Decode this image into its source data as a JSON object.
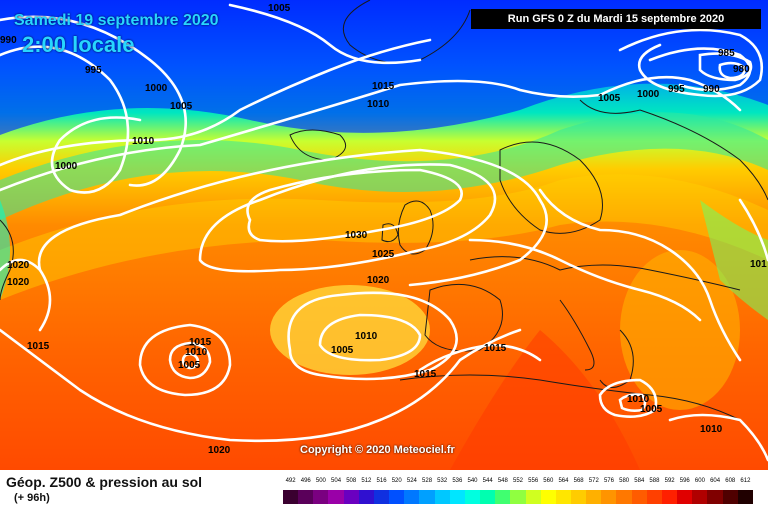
{
  "header": {
    "date": "Samedi 19 septembre 2020",
    "time": "2:00 locale",
    "run": "Run GFS 0 Z du Mardi 15 septembre 2020"
  },
  "copyright": "Copyright © 2020 Meteociel.fr",
  "footer": {
    "title": "Géop. Z500 & pression au sol",
    "subtitle": "(+ 96h)"
  },
  "isobar_labels": [
    "990",
    "1005",
    "995",
    "1000",
    "1005",
    "1010",
    "1000",
    "1020",
    "1020",
    "1015",
    "1015",
    "1010",
    "1005",
    "1030",
    "1025",
    "1020",
    "1010",
    "1005",
    "1015",
    "1015",
    "1010",
    "1015",
    "1005",
    "1000",
    "995",
    "990",
    "985",
    "980",
    "1010",
    "1005",
    "1010",
    "1010",
    "1020",
    "101"
  ],
  "legend": {
    "labels": [
      "492",
      "496",
      "500",
      "504",
      "508",
      "512",
      "516",
      "520",
      "524",
      "528",
      "532",
      "536",
      "540",
      "544",
      "548",
      "552",
      "556",
      "560",
      "564",
      "568",
      "572",
      "576",
      "580",
      "584",
      "588",
      "592",
      "596",
      "600",
      "604",
      "608",
      "612"
    ],
    "colors": [
      "#3a0030",
      "#5a005a",
      "#7a0080",
      "#9a00a8",
      "#6a00c0",
      "#3010d0",
      "#1030e0",
      "#0050ff",
      "#0078ff",
      "#00a0ff",
      "#00c8ff",
      "#00e6ff",
      "#00ffe0",
      "#00ffb0",
      "#40ff70",
      "#90ff40",
      "#d0ff20",
      "#ffff00",
      "#ffe600",
      "#ffcc00",
      "#ffb000",
      "#ff9400",
      "#ff7800",
      "#ff5c00",
      "#ff4000",
      "#ff2000",
      "#e00000",
      "#b00000",
      "#800000",
      "#500000",
      "#200000"
    ]
  }
}
